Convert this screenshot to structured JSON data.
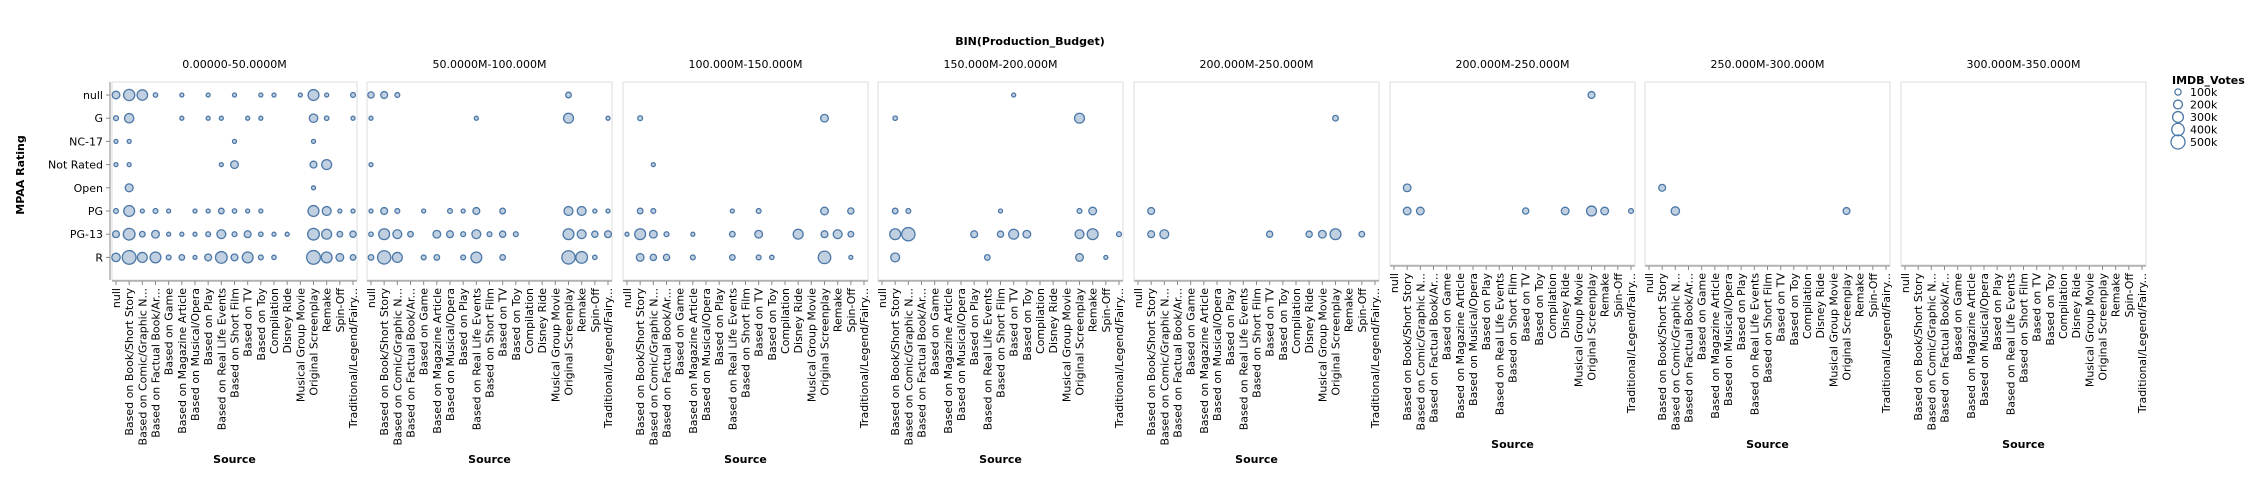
{
  "chart_data": {
    "type": "scatter",
    "column_title": "BIN(Production_Budget)",
    "facets": [
      "0.00000-50.0000M",
      "50.0000M-100.000M",
      "100.000M-150.000M",
      "150.000M-200.000M",
      "200.000M-250.000M",
      "200.000M-250.000M",
      "250.000M-300.000M",
      "300.000M-350.000M"
    ],
    "xlabel": "Source",
    "ylabel": "MPAA Rating",
    "x_categories": [
      "null",
      "Based on Book/Short Story",
      "Based on Comic/Graphic N...",
      "Based on Factual Book/Ar...",
      "Based on Game",
      "Based on Magazine Article",
      "Based on Musical/Opera",
      "Based on Play",
      "Based on Real Life Events",
      "Based on Short Film",
      "Based on TV",
      "Based on Toy",
      "Compilation",
      "Disney Ride",
      "Musical Group Movie",
      "Original Screenplay",
      "Remake",
      "Spin-Off",
      "Traditional/Legend/Fairy..."
    ],
    "y_categories": [
      "null",
      "G",
      "NC-17",
      "Not Rated",
      "Open",
      "PG",
      "PG-13",
      "R"
    ],
    "legend": {
      "title": "IMDB_Votes",
      "position": "right",
      "entries": [
        {
          "label": "100k",
          "value": 100000
        },
        {
          "label": "200k",
          "value": 200000
        },
        {
          "label": "300k",
          "value": 300000
        },
        {
          "label": "400k",
          "value": 400000
        },
        {
          "label": "500k",
          "value": 500000
        }
      ]
    },
    "color": "#4c78a8",
    "points": [
      [
        0,
        0,
        0,
        150000
      ],
      [
        0,
        1,
        0,
        320000
      ],
      [
        0,
        2,
        0,
        280000
      ],
      [
        0,
        3,
        0,
        50000
      ],
      [
        0,
        5,
        0,
        30000
      ],
      [
        0,
        7,
        0,
        40000
      ],
      [
        0,
        9,
        0,
        30000
      ],
      [
        0,
        11,
        0,
        25000
      ],
      [
        0,
        12,
        0,
        20000
      ],
      [
        0,
        14,
        0,
        30000
      ],
      [
        0,
        15,
        0,
        300000
      ],
      [
        0,
        16,
        0,
        40000
      ],
      [
        0,
        18,
        0,
        60000
      ],
      [
        0,
        0,
        1,
        60000
      ],
      [
        0,
        1,
        1,
        220000
      ],
      [
        0,
        5,
        1,
        30000
      ],
      [
        0,
        7,
        1,
        30000
      ],
      [
        0,
        8,
        1,
        40000
      ],
      [
        0,
        10,
        1,
        30000
      ],
      [
        0,
        11,
        1,
        40000
      ],
      [
        0,
        15,
        1,
        180000
      ],
      [
        0,
        16,
        1,
        50000
      ],
      [
        0,
        18,
        1,
        40000
      ],
      [
        0,
        0,
        2,
        20000
      ],
      [
        0,
        1,
        2,
        40000
      ],
      [
        0,
        9,
        2,
        30000
      ],
      [
        0,
        15,
        2,
        20000
      ],
      [
        0,
        0,
        3,
        30000
      ],
      [
        0,
        1,
        3,
        40000
      ],
      [
        0,
        8,
        3,
        40000
      ],
      [
        0,
        9,
        3,
        150000
      ],
      [
        0,
        15,
        3,
        120000
      ],
      [
        0,
        16,
        3,
        250000
      ],
      [
        0,
        1,
        4,
        160000
      ],
      [
        0,
        15,
        4,
        15000
      ],
      [
        0,
        0,
        5,
        60000
      ],
      [
        0,
        1,
        5,
        300000
      ],
      [
        0,
        2,
        5,
        30000
      ],
      [
        0,
        3,
        5,
        60000
      ],
      [
        0,
        4,
        5,
        20000
      ],
      [
        0,
        6,
        5,
        20000
      ],
      [
        0,
        7,
        5,
        40000
      ],
      [
        0,
        8,
        5,
        80000
      ],
      [
        0,
        9,
        5,
        50000
      ],
      [
        0,
        10,
        5,
        30000
      ],
      [
        0,
        11,
        5,
        40000
      ],
      [
        0,
        15,
        5,
        300000
      ],
      [
        0,
        16,
        5,
        200000
      ],
      [
        0,
        17,
        5,
        40000
      ],
      [
        0,
        18,
        5,
        40000
      ],
      [
        0,
        0,
        6,
        120000
      ],
      [
        0,
        1,
        6,
        350000
      ],
      [
        0,
        2,
        6,
        80000
      ],
      [
        0,
        3,
        6,
        150000
      ],
      [
        0,
        4,
        6,
        40000
      ],
      [
        0,
        5,
        6,
        40000
      ],
      [
        0,
        6,
        6,
        30000
      ],
      [
        0,
        7,
        6,
        60000
      ],
      [
        0,
        8,
        6,
        200000
      ],
      [
        0,
        9,
        6,
        60000
      ],
      [
        0,
        10,
        6,
        120000
      ],
      [
        0,
        11,
        6,
        50000
      ],
      [
        0,
        12,
        6,
        30000
      ],
      [
        0,
        13,
        6,
        20000
      ],
      [
        0,
        15,
        6,
        350000
      ],
      [
        0,
        16,
        6,
        250000
      ],
      [
        0,
        17,
        6,
        80000
      ],
      [
        0,
        18,
        6,
        100000
      ],
      [
        0,
        0,
        7,
        180000
      ],
      [
        0,
        1,
        7,
        480000
      ],
      [
        0,
        2,
        7,
        250000
      ],
      [
        0,
        3,
        7,
        300000
      ],
      [
        0,
        4,
        7,
        60000
      ],
      [
        0,
        5,
        7,
        80000
      ],
      [
        0,
        6,
        7,
        40000
      ],
      [
        0,
        7,
        7,
        120000
      ],
      [
        0,
        8,
        7,
        350000
      ],
      [
        0,
        9,
        7,
        120000
      ],
      [
        0,
        10,
        7,
        300000
      ],
      [
        0,
        11,
        7,
        60000
      ],
      [
        0,
        12,
        7,
        50000
      ],
      [
        0,
        15,
        7,
        480000
      ],
      [
        0,
        16,
        7,
        300000
      ],
      [
        0,
        17,
        7,
        150000
      ],
      [
        0,
        18,
        7,
        80000
      ],
      [
        1,
        0,
        0,
        100000
      ],
      [
        1,
        1,
        0,
        120000
      ],
      [
        1,
        2,
        0,
        60000
      ],
      [
        1,
        15,
        0,
        80000
      ],
      [
        1,
        0,
        1,
        30000
      ],
      [
        1,
        8,
        1,
        40000
      ],
      [
        1,
        15,
        1,
        250000
      ],
      [
        1,
        18,
        1,
        40000
      ],
      [
        1,
        0,
        3,
        20000
      ],
      [
        1,
        0,
        5,
        40000
      ],
      [
        1,
        1,
        5,
        120000
      ],
      [
        1,
        2,
        5,
        60000
      ],
      [
        1,
        4,
        5,
        40000
      ],
      [
        1,
        6,
        5,
        60000
      ],
      [
        1,
        7,
        5,
        30000
      ],
      [
        1,
        8,
        5,
        120000
      ],
      [
        1,
        10,
        5,
        80000
      ],
      [
        1,
        15,
        5,
        200000
      ],
      [
        1,
        16,
        5,
        200000
      ],
      [
        1,
        17,
        5,
        40000
      ],
      [
        1,
        18,
        5,
        40000
      ],
      [
        1,
        0,
        6,
        50000
      ],
      [
        1,
        1,
        6,
        300000
      ],
      [
        1,
        2,
        6,
        200000
      ],
      [
        1,
        3,
        6,
        80000
      ],
      [
        1,
        5,
        6,
        150000
      ],
      [
        1,
        6,
        6,
        120000
      ],
      [
        1,
        7,
        6,
        60000
      ],
      [
        1,
        8,
        6,
        200000
      ],
      [
        1,
        9,
        6,
        60000
      ],
      [
        1,
        10,
        6,
        100000
      ],
      [
        1,
        11,
        6,
        60000
      ],
      [
        1,
        15,
        6,
        300000
      ],
      [
        1,
        16,
        6,
        200000
      ],
      [
        1,
        17,
        6,
        100000
      ],
      [
        1,
        18,
        6,
        120000
      ],
      [
        1,
        0,
        7,
        80000
      ],
      [
        1,
        1,
        7,
        450000
      ],
      [
        1,
        2,
        7,
        250000
      ],
      [
        1,
        4,
        7,
        60000
      ],
      [
        1,
        5,
        7,
        80000
      ],
      [
        1,
        7,
        7,
        60000
      ],
      [
        1,
        8,
        7,
        300000
      ],
      [
        1,
        10,
        7,
        80000
      ],
      [
        1,
        15,
        7,
        450000
      ],
      [
        1,
        16,
        7,
        350000
      ],
      [
        1,
        17,
        7,
        50000
      ],
      [
        2,
        1,
        1,
        60000
      ],
      [
        2,
        15,
        1,
        150000
      ],
      [
        2,
        2,
        3,
        20000
      ],
      [
        2,
        1,
        5,
        80000
      ],
      [
        2,
        2,
        5,
        60000
      ],
      [
        2,
        8,
        5,
        40000
      ],
      [
        2,
        10,
        5,
        60000
      ],
      [
        2,
        15,
        5,
        150000
      ],
      [
        2,
        17,
        5,
        100000
      ],
      [
        2,
        0,
        6,
        30000
      ],
      [
        2,
        1,
        6,
        300000
      ],
      [
        2,
        2,
        6,
        150000
      ],
      [
        2,
        3,
        6,
        60000
      ],
      [
        2,
        5,
        6,
        40000
      ],
      [
        2,
        8,
        6,
        80000
      ],
      [
        2,
        10,
        6,
        150000
      ],
      [
        2,
        13,
        6,
        250000
      ],
      [
        2,
        15,
        6,
        120000
      ],
      [
        2,
        16,
        6,
        200000
      ],
      [
        2,
        17,
        6,
        80000
      ],
      [
        2,
        1,
        7,
        150000
      ],
      [
        2,
        2,
        7,
        100000
      ],
      [
        2,
        3,
        7,
        100000
      ],
      [
        2,
        5,
        7,
        60000
      ],
      [
        2,
        8,
        7,
        80000
      ],
      [
        2,
        10,
        7,
        60000
      ],
      [
        2,
        11,
        7,
        50000
      ],
      [
        2,
        15,
        7,
        400000
      ],
      [
        2,
        17,
        7,
        40000
      ],
      [
        3,
        10,
        0,
        40000
      ],
      [
        3,
        1,
        1,
        50000
      ],
      [
        3,
        15,
        1,
        250000
      ],
      [
        3,
        1,
        5,
        80000
      ],
      [
        3,
        2,
        5,
        60000
      ],
      [
        3,
        9,
        5,
        40000
      ],
      [
        3,
        15,
        5,
        60000
      ],
      [
        3,
        16,
        5,
        150000
      ],
      [
        3,
        1,
        6,
        300000
      ],
      [
        3,
        2,
        6,
        450000
      ],
      [
        3,
        7,
        6,
        120000
      ],
      [
        3,
        9,
        6,
        100000
      ],
      [
        3,
        10,
        6,
        250000
      ],
      [
        3,
        11,
        6,
        150000
      ],
      [
        3,
        15,
        6,
        200000
      ],
      [
        3,
        16,
        6,
        300000
      ],
      [
        3,
        18,
        6,
        60000
      ],
      [
        3,
        1,
        7,
        200000
      ],
      [
        3,
        8,
        7,
        80000
      ],
      [
        3,
        15,
        7,
        150000
      ],
      [
        3,
        17,
        7,
        40000
      ],
      [
        4,
        15,
        1,
        80000
      ],
      [
        4,
        1,
        5,
        120000
      ],
      [
        4,
        1,
        6,
        120000
      ],
      [
        4,
        2,
        6,
        200000
      ],
      [
        4,
        10,
        6,
        100000
      ],
      [
        4,
        13,
        6,
        100000
      ],
      [
        4,
        14,
        6,
        150000
      ],
      [
        4,
        15,
        6,
        300000
      ],
      [
        4,
        17,
        6,
        80000
      ],
      [
        5,
        15,
        0,
        120000
      ],
      [
        5,
        1,
        4,
        150000
      ],
      [
        5,
        1,
        5,
        150000
      ],
      [
        5,
        2,
        5,
        150000
      ],
      [
        5,
        10,
        5,
        100000
      ],
      [
        5,
        13,
        5,
        150000
      ],
      [
        5,
        15,
        5,
        250000
      ],
      [
        5,
        16,
        5,
        150000
      ],
      [
        5,
        18,
        5,
        60000
      ],
      [
        6,
        1,
        4,
        120000
      ],
      [
        6,
        2,
        5,
        180000
      ],
      [
        6,
        15,
        5,
        120000
      ]
    ]
  }
}
